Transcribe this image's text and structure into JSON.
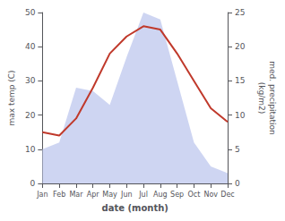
{
  "chart_data": {
    "type": "line",
    "xlabel": "date (month)",
    "ylabel": "max temp (C)",
    "y2label": "med. precipitation\n(kg/m2)",
    "categories": [
      "Jan",
      "Feb",
      "Mar",
      "Apr",
      "May",
      "Jun",
      "Jul",
      "Aug",
      "Sep",
      "Oct",
      "Nov",
      "Dec"
    ],
    "series": [
      {
        "type": "area",
        "color": "#c5cef0",
        "values": [
          10,
          12,
          28,
          27,
          23,
          37,
          50,
          48,
          30,
          12,
          5,
          3
        ]
      },
      {
        "type": "line",
        "color": "#c0392b",
        "values": [
          15,
          14,
          19,
          28,
          38,
          43,
          46,
          45,
          38,
          30,
          22,
          18
        ]
      }
    ],
    "ylim": [
      0,
      50
    ],
    "yticks": [
      0,
      10,
      20,
      30,
      40,
      50
    ],
    "y2lim": [
      0,
      25
    ],
    "y2ticks": [
      0,
      5,
      10,
      15,
      20,
      25
    ],
    "grid": false
  }
}
